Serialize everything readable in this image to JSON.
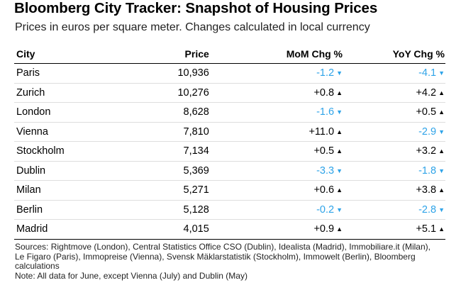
{
  "title": "Bloomberg City Tracker: Snapshot of Housing Prices",
  "subtitle": "Prices in euros per square meter. Changes calculated in local currency",
  "columns": {
    "city": "City",
    "price": "Price",
    "mom": "MoM Chg %",
    "yoy": "YoY Chg %"
  },
  "rows": [
    {
      "city": "Paris",
      "price": "10,936",
      "mom": "-1.2",
      "mom_dir": "down",
      "yoy": "-4.1",
      "yoy_dir": "down"
    },
    {
      "city": "Zurich",
      "price": "10,276",
      "mom": "+0.8",
      "mom_dir": "up",
      "yoy": "+4.2",
      "yoy_dir": "up"
    },
    {
      "city": "London",
      "price": "8,628",
      "mom": "-1.6",
      "mom_dir": "down",
      "yoy": "+0.5",
      "yoy_dir": "up"
    },
    {
      "city": "Vienna",
      "price": "7,810",
      "mom": "+11.0",
      "mom_dir": "up",
      "yoy": "-2.9",
      "yoy_dir": "down"
    },
    {
      "city": "Stockholm",
      "price": "7,134",
      "mom": "+0.5",
      "mom_dir": "up",
      "yoy": "+3.2",
      "yoy_dir": "up"
    },
    {
      "city": "Dublin",
      "price": "5,369",
      "mom": "-3.3",
      "mom_dir": "down",
      "yoy": "-1.8",
      "yoy_dir": "down"
    },
    {
      "city": "Milan",
      "price": "5,271",
      "mom": "+0.6",
      "mom_dir": "up",
      "yoy": "+3.8",
      "yoy_dir": "up"
    },
    {
      "city": "Berlin",
      "price": "5,128",
      "mom": "-0.2",
      "mom_dir": "down",
      "yoy": "-2.8",
      "yoy_dir": "down"
    },
    {
      "city": "Madrid",
      "price": "4,015",
      "mom": "+0.9",
      "mom_dir": "up",
      "yoy": "+5.1",
      "yoy_dir": "up"
    }
  ],
  "arrows": {
    "up": "▲",
    "down": "▼"
  },
  "colors": {
    "up": "#000000",
    "down": "#2ea3e8"
  },
  "footer": {
    "sources": "Sources: Rightmove (London), Central Statistics Office CSO (Dublin), Idealista (Madrid), Immobiliare.it (Milan), Le Figaro (Paris), Immopreise (Vienna), Svensk Mäklarstatistik (Stockholm), Immowelt (Berlin), Bloomberg calculations",
    "note": "Note: All data for June, except Vienna (July) and Dublin (May)"
  }
}
